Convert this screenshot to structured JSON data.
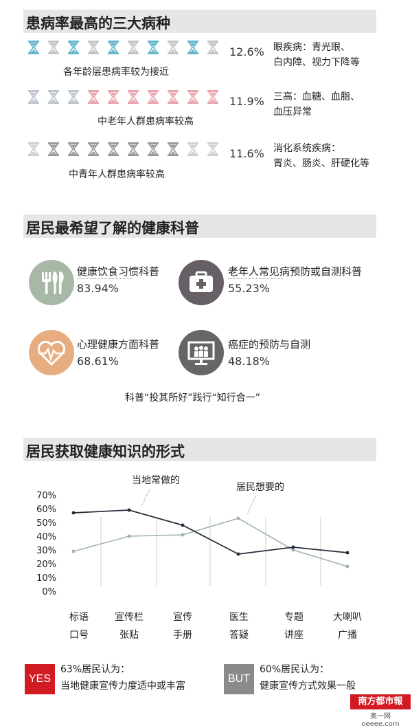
{
  "section1": {
    "title": "患病率最高的三大病种",
    "rows": [
      {
        "pct": "12.6%",
        "desc_line1": "眼疾病：青光眼、",
        "desc_line2": "白内障、视力下降等",
        "note": "各年龄层患病率较为接近",
        "color": "#63b6cb",
        "light": "#c4c4c4",
        "pattern": [
          1,
          0,
          1,
          0,
          1,
          0,
          1,
          0,
          1,
          0
        ]
      },
      {
        "pct": "11.9%",
        "desc_line1": "三高：血糖、血脂、",
        "desc_line2": "血压异常",
        "note": "中老年人群患病率较高",
        "color": "#e8a4ad",
        "light": "#bcc2cc",
        "pattern": [
          0,
          0,
          0,
          1,
          1,
          1,
          1,
          1,
          1,
          1
        ]
      },
      {
        "pct": "11.6%",
        "desc_line1": "消化系统疾病：",
        "desc_line2": "胃炎、肠炎、肝硬化等",
        "note": "中青年人群患病率较高",
        "color": "#9a9a9a",
        "light": "#cfcfcf",
        "pattern": [
          0,
          1,
          1,
          1,
          1,
          1,
          1,
          1,
          0,
          0
        ]
      }
    ]
  },
  "section2": {
    "title": "居民最希望了解的健康科普",
    "items": [
      {
        "label": "健康饮食习惯科普",
        "pct": "83.94%",
        "icon": "utensils-icon",
        "color": "#a7b9a6"
      },
      {
        "label": "老年人常见病预防或自测科普",
        "pct": "55.23%",
        "icon": "medical-kit-icon",
        "color": "#666066"
      },
      {
        "label": "心理健康方面科普",
        "pct": "68.61%",
        "icon": "heart-pulse-icon",
        "color": "#e7ad80"
      },
      {
        "label": "癌症的预防与自测",
        "pct": "48.18%",
        "icon": "presentation-icon",
        "color": "#666666"
      }
    ],
    "footer": "科普“投其所好”践行“知行合一”"
  },
  "section3": {
    "title": "居民获取健康知识的形式",
    "annotation_local": "当地常做的",
    "annotation_want": "居民想要的"
  },
  "chart_data": {
    "type": "line",
    "categories": [
      "标语口号",
      "宣传栏张贴",
      "宣传手册",
      "医生答疑",
      "专题讲座",
      "大喇叭广播"
    ],
    "category_lines": [
      [
        "标语",
        "口号"
      ],
      [
        "宣传栏",
        "张贴"
      ],
      [
        "宣传",
        "手册"
      ],
      [
        "医生",
        "答疑"
      ],
      [
        "专题",
        "讲座"
      ],
      [
        "大喇叭",
        "广播"
      ]
    ],
    "series": [
      {
        "name": "当地常做的",
        "values": [
          58,
          60,
          49,
          28,
          33,
          29
        ],
        "color": "#2a2a3a"
      },
      {
        "name": "居民想要的",
        "values": [
          30,
          41,
          42,
          54,
          31,
          19
        ],
        "color": "#9fb5a8"
      }
    ],
    "yticks": [
      "70%",
      "60%",
      "50%",
      "40%",
      "30%",
      "20%",
      "10%",
      "0%"
    ],
    "ylim": [
      0,
      70
    ]
  },
  "conclusion": {
    "yes_label": "YES",
    "yes_line1": "63%居民认为：",
    "yes_line2": "当地健康宣传力度适中或丰富",
    "but_label": "BUT",
    "but_line1": "60%居民认为：",
    "but_line2": "健康宣传方式效果一般"
  },
  "logo": {
    "name": "南方都市報",
    "sub": "奥一网 oeeee.com"
  }
}
